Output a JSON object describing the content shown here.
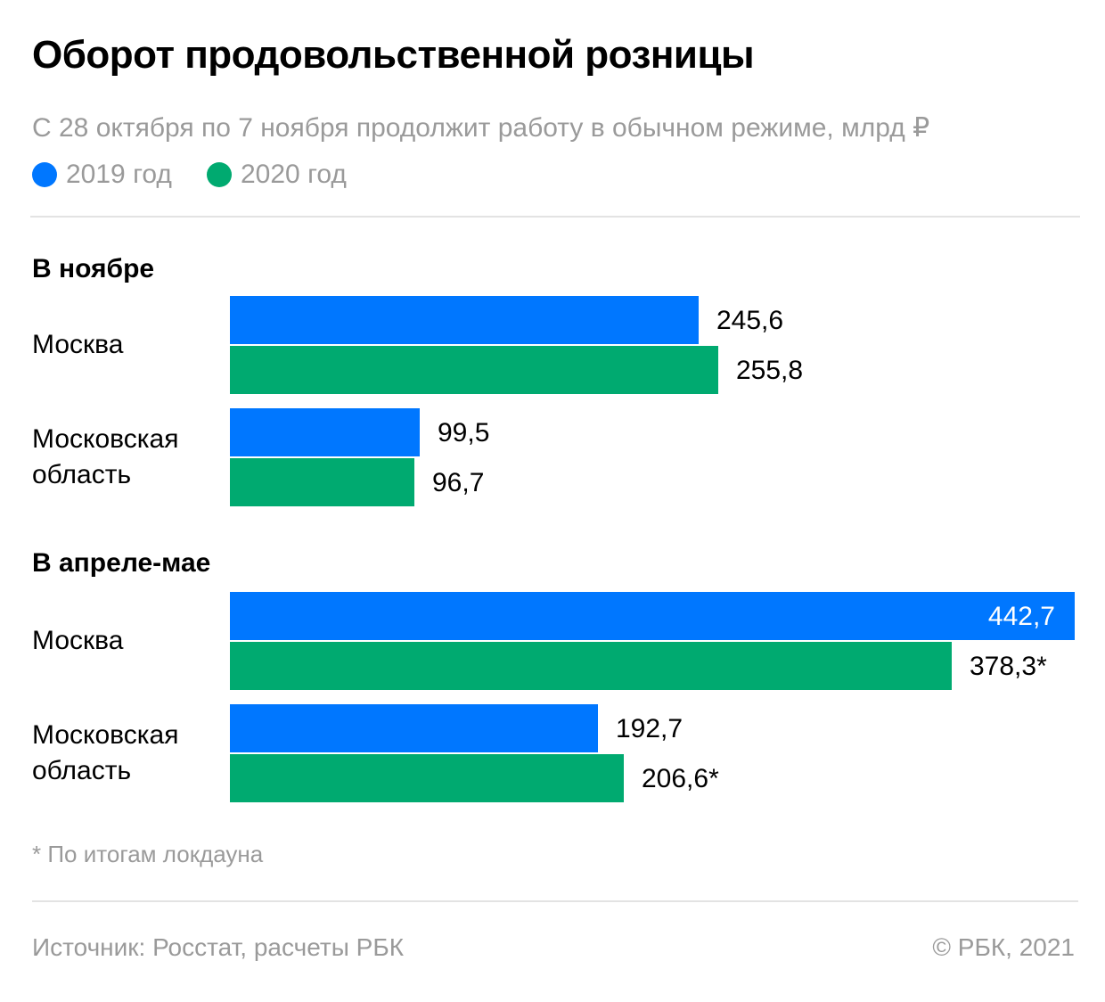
{
  "title": "Оборот продовольственной розницы",
  "subtitle": "С 28 октября по 7 ноября продолжит работу в обычном режиме, млрд ₽",
  "colors": {
    "series_2019": "#0077ff",
    "series_2020": "#00aa70",
    "muted_text": "#9a9a9a",
    "rule": "#e3e3e3"
  },
  "chart_data": {
    "type": "bar",
    "orientation": "horizontal",
    "legend": [
      "2019 год",
      "2020 год"
    ],
    "legend_placement": "top-left",
    "grid": false,
    "xlim": [
      0,
      442.7
    ],
    "groups": [
      {
        "title": "В ноябре",
        "categories": [
          {
            "label_lines": [
              "Москва"
            ],
            "values": [
              245.6,
              255.8
            ],
            "labels": [
              "245,6",
              "255,8"
            ]
          },
          {
            "label_lines": [
              "Московская",
              "область"
            ],
            "values": [
              99.5,
              96.7
            ],
            "labels": [
              "99,5",
              "96,7"
            ]
          }
        ]
      },
      {
        "title": "В апреле-мае",
        "categories": [
          {
            "label_lines": [
              "Москва"
            ],
            "values": [
              442.7,
              378.3
            ],
            "labels": [
              "442,7",
              "378,3*"
            ]
          },
          {
            "label_lines": [
              "Московская",
              "область"
            ],
            "values": [
              192.7,
              206.6
            ],
            "labels": [
              "192,7",
              "206,6*"
            ]
          }
        ]
      }
    ]
  },
  "footnote": "* По итогам локдауна",
  "source": "Источник: Росстат, расчеты РБК",
  "copyright": "©  РБК, 2021"
}
